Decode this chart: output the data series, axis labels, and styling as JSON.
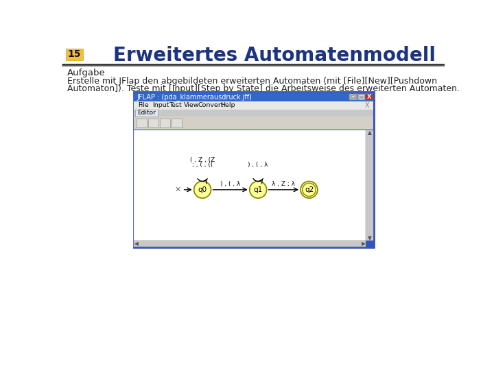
{
  "title": "Erweitertes Automatenmodell",
  "slide_number": "15",
  "slide_number_bg": "#F0C040",
  "title_color": "#1C3380",
  "body_bg": "#FFFFFF",
  "aufgabe_label": "Aufgabe",
  "body_text_line1": "Erstelle mit JFlap den abgebildeten erweiterten Automaten (mit [File][New][Pushdown",
  "body_text_line2": "Automaton]). Teste mit [Input][Step by State] die Arbeitsweise des erweiterten Automaten.",
  "text_color": "#222222",
  "jflap_title": "JFLAP : (pda_klammerausdruck.jff)",
  "jflap_title_bg": "#3366CC",
  "jflap_title_color": "#FFFFFF",
  "jflap_border_outer": "#3355BB",
  "jflap_border_inner": "#6688CC",
  "jflap_body_bg": "#D4D0C8",
  "jflap_canvas_bg": "#FFFFFF",
  "jflap_menu_items": [
    "File",
    "Input",
    "Test",
    "View",
    "Convert",
    "Help"
  ],
  "jflap_tab": "Editor",
  "state_fill": "#FFFF99",
  "state_edge": "#888800",
  "state_text": "#000000",
  "arrow_color": "#000000",
  "loop_label_q0_line1": "( , Z , (Z",
  "loop_label_q0_line2": "; , ( , ((",
  "loop_label_q1": ") , ( , λ",
  "arrow_label_q0q1": ") , ( , λ",
  "arrow_label_q1q2": "λ , Z ; λ"
}
